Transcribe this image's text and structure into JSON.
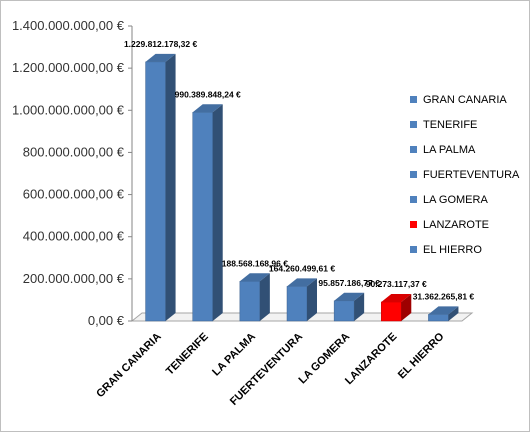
{
  "chart_data": {
    "type": "bar",
    "categories": [
      "GRAN CANARIA",
      "TENERIFE",
      "LA PALMA",
      "FUERTEVENTURA",
      "LA GOMERA",
      "LANZAROTE",
      "EL HIERRO"
    ],
    "values": [
      1229812178.32,
      990389848.24,
      188568168.96,
      164260499.61,
      95857186.77,
      90273117.37,
      31362265.81
    ],
    "data_labels": [
      "1.229.812.178,32 €",
      "990.389.848,24 €",
      "188.568.168,96 €",
      "164.260.499,61 €",
      "95.857.186,77 €",
      "90.273.117,37 €",
      "31.362.265,81 €"
    ],
    "colors": [
      "#4f81bd",
      "#4f81bd",
      "#4f81bd",
      "#4f81bd",
      "#4f81bd",
      "#ff0000",
      "#4f81bd"
    ],
    "ylim": [
      0,
      1400000000
    ],
    "yticks": [
      0,
      200000000,
      400000000,
      600000000,
      800000000,
      1000000000,
      1200000000,
      1400000000
    ],
    "ytick_labels": [
      "0,00 €",
      "200.000.000,00 €",
      "400.000.000,00 €",
      "600.000.000,00 €",
      "800.000.000,00 €",
      "1.000.000.000,00 €",
      "1.200.000.000,00 €",
      "1.400.000.000,00 €"
    ],
    "legend": [
      "GRAN CANARIA",
      "TENERIFE",
      "LA PALMA",
      "FUERTEVENTURA",
      "LA GOMERA",
      "LANZAROTE",
      "EL HIERRO"
    ],
    "legend_position": "right",
    "grid": false,
    "style": "3d-columns"
  }
}
